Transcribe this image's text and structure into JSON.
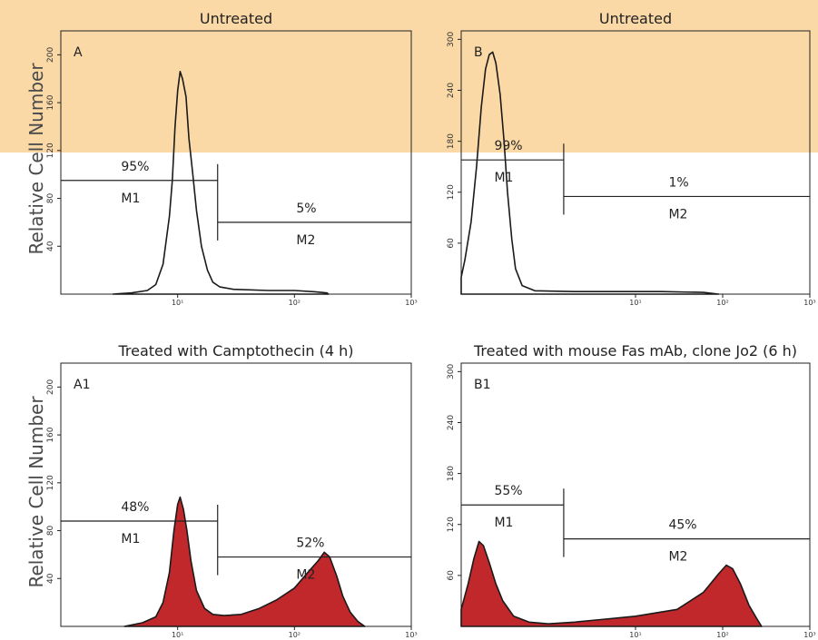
{
  "y_axis_label": "Relative Cell Number",
  "chart_data": [
    {
      "type": "area",
      "title": "Untreated",
      "panel_label": "A",
      "ylabel": "Relative Cell Number",
      "xscale": "log",
      "xlim": [
        1,
        1000
      ],
      "ylim": [
        0,
        220
      ],
      "yticks": [
        40,
        80,
        120,
        160,
        200
      ],
      "xticks": [
        "10¹",
        "10²",
        "10³"
      ],
      "filled": false,
      "line_color": "#1a1a1a",
      "fill_color": "",
      "series_points": [
        [
          2.8,
          0
        ],
        [
          4,
          1
        ],
        [
          5.5,
          3
        ],
        [
          6.5,
          8
        ],
        [
          7.5,
          25
        ],
        [
          8.5,
          65
        ],
        [
          9,
          95
        ],
        [
          9.5,
          140
        ],
        [
          10,
          170
        ],
        [
          10.5,
          186
        ],
        [
          11,
          180
        ],
        [
          11.8,
          165
        ],
        [
          12.5,
          130
        ],
        [
          13.5,
          100
        ],
        [
          14.5,
          70
        ],
        [
          16,
          40
        ],
        [
          18,
          20
        ],
        [
          20,
          10
        ],
        [
          23,
          6
        ],
        [
          30,
          4
        ],
        [
          60,
          3
        ],
        [
          100,
          3
        ],
        [
          150,
          2
        ],
        [
          190,
          1
        ],
        [
          195,
          0
        ]
      ],
      "marker_split": 22,
      "markers": [
        {
          "name": "M1",
          "percent": "95%",
          "x_start": 1,
          "x_end": 22,
          "y": 95
        },
        {
          "name": "M2",
          "percent": "5%",
          "x_start": 22,
          "x_end": 1000,
          "y": 60
        }
      ]
    },
    {
      "type": "area",
      "title": "Untreated",
      "panel_label": "B",
      "ylabel": "Relative Cell Number",
      "xscale": "log",
      "xlim": [
        0.1,
        1000
      ],
      "ylim": [
        0,
        310
      ],
      "yticks": [
        60,
        120,
        180,
        240,
        300
      ],
      "xticks": [
        "10¹",
        "10²",
        "10³"
      ],
      "filled": false,
      "line_color": "#1a1a1a",
      "fill_color": "",
      "series_points": [
        [
          0.1,
          20
        ],
        [
          0.11,
          40
        ],
        [
          0.13,
          85
        ],
        [
          0.15,
          150
        ],
        [
          0.17,
          220
        ],
        [
          0.19,
          265
        ],
        [
          0.21,
          282
        ],
        [
          0.23,
          285
        ],
        [
          0.25,
          272
        ],
        [
          0.28,
          235
        ],
        [
          0.31,
          180
        ],
        [
          0.34,
          120
        ],
        [
          0.38,
          65
        ],
        [
          0.42,
          30
        ],
        [
          0.5,
          10
        ],
        [
          0.7,
          4
        ],
        [
          2,
          3
        ],
        [
          20,
          3
        ],
        [
          60,
          2
        ],
        [
          90,
          0
        ]
      ],
      "marker_split": 1.5,
      "markers": [
        {
          "name": "M1",
          "percent": "99%",
          "x_start": 0.1,
          "x_end": 1.5,
          "y": 158
        },
        {
          "name": "M2",
          "percent": "1%",
          "x_start": 1.5,
          "x_end": 1000,
          "y": 115
        }
      ]
    },
    {
      "type": "area",
      "title": "Treated with Camptothecin (4 h)",
      "panel_label": "A1",
      "ylabel": "Relative Cell Number",
      "xscale": "log",
      "xlim": [
        1,
        1000
      ],
      "ylim": [
        0,
        220
      ],
      "yticks": [
        40,
        80,
        120,
        160,
        200
      ],
      "xticks": [
        "10¹",
        "10²",
        "10³"
      ],
      "filled": true,
      "line_color": "#1a1a1a",
      "fill_color": "#c0282b",
      "series_points": [
        [
          3.5,
          0
        ],
        [
          5,
          3
        ],
        [
          6.5,
          8
        ],
        [
          7.5,
          20
        ],
        [
          8.5,
          45
        ],
        [
          9.3,
          80
        ],
        [
          10,
          102
        ],
        [
          10.5,
          108
        ],
        [
          11.2,
          98
        ],
        [
          12,
          80
        ],
        [
          13,
          55
        ],
        [
          14.5,
          30
        ],
        [
          17,
          15
        ],
        [
          20,
          10
        ],
        [
          25,
          9
        ],
        [
          35,
          10
        ],
        [
          50,
          15
        ],
        [
          70,
          22
        ],
        [
          100,
          32
        ],
        [
          130,
          45
        ],
        [
          160,
          55
        ],
        [
          180,
          62
        ],
        [
          200,
          58
        ],
        [
          230,
          42
        ],
        [
          260,
          25
        ],
        [
          300,
          12
        ],
        [
          350,
          4
        ],
        [
          400,
          0
        ]
      ],
      "marker_split": 22,
      "markers": [
        {
          "name": "M1",
          "percent": "48%",
          "x_start": 1,
          "x_end": 22,
          "y": 88
        },
        {
          "name": "M2",
          "percent": "52%",
          "x_start": 22,
          "x_end": 1000,
          "y": 58
        }
      ]
    },
    {
      "type": "area",
      "title": "Treated with mouse Fas mAb, clone Jo2 (6 h)",
      "panel_label": "B1",
      "ylabel": "Relative Cell Number",
      "xscale": "log",
      "xlim": [
        0.1,
        1000
      ],
      "ylim": [
        0,
        310
      ],
      "yticks": [
        60,
        120,
        180,
        240,
        300
      ],
      "xticks": [
        "10¹",
        "10²",
        "10³"
      ],
      "filled": true,
      "line_color": "#1a1a1a",
      "fill_color": "#c0282b",
      "series_points": [
        [
          0.1,
          20
        ],
        [
          0.12,
          50
        ],
        [
          0.14,
          80
        ],
        [
          0.16,
          100
        ],
        [
          0.18,
          95
        ],
        [
          0.21,
          75
        ],
        [
          0.25,
          50
        ],
        [
          0.3,
          30
        ],
        [
          0.4,
          12
        ],
        [
          0.6,
          5
        ],
        [
          1,
          3
        ],
        [
          2,
          5
        ],
        [
          4,
          8
        ],
        [
          10,
          12
        ],
        [
          30,
          20
        ],
        [
          60,
          40
        ],
        [
          90,
          62
        ],
        [
          110,
          72
        ],
        [
          130,
          68
        ],
        [
          160,
          50
        ],
        [
          200,
          25
        ],
        [
          250,
          8
        ],
        [
          280,
          0
        ]
      ],
      "marker_split": 1.5,
      "markers": [
        {
          "name": "M1",
          "percent": "55%",
          "x_start": 0.1,
          "x_end": 1.5,
          "y": 143
        },
        {
          "name": "M2",
          "percent": "45%",
          "x_start": 1.5,
          "x_end": 1000,
          "y": 103
        }
      ]
    }
  ]
}
